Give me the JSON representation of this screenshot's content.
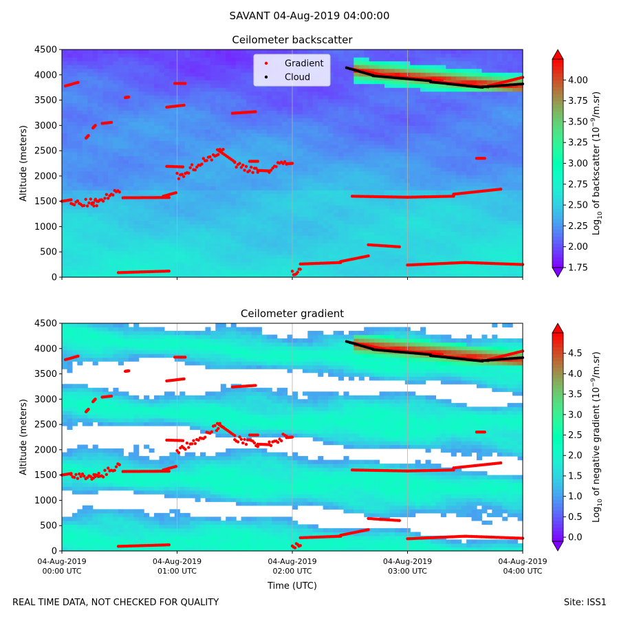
{
  "figure": {
    "suptitle": "SAVANT 04-Aug-2019 04:00:00",
    "footer_note": "REAL TIME DATA, NOT CHECKED FOR QUALITY",
    "site": "Site: ISS1"
  },
  "chart_data": [
    {
      "id": "backscatter",
      "type": "heatmap",
      "title": "Ceilometer backscatter",
      "xlabel": "",
      "ylabel": "Altitude (meters)",
      "xlim": [
        0,
        4
      ],
      "ylim": [
        0,
        4500
      ],
      "y_ticks": [
        0,
        500,
        1000,
        1500,
        2000,
        2500,
        3000,
        3500,
        4000,
        4500
      ],
      "x_ticks": [
        0,
        1,
        2,
        3,
        4
      ],
      "x_tick_labels": [],
      "grid": "vertical lines at each hour",
      "legend": {
        "placement": "top-center",
        "entries": [
          {
            "label": "Gradient",
            "color": "#ff0000",
            "marker": "dot"
          },
          {
            "label": "Cloud",
            "color": "#000000",
            "marker": "dot"
          }
        ]
      },
      "colorbar": {
        "label": "Log10 of backscatter (10^-9/m.sr)",
        "label_parts": [
          "Log",
          "10",
          " of backscatter (10",
          "−9",
          "/m.sr)"
        ],
        "min": 1.75,
        "max": 4.25,
        "ticks": [
          "1.75",
          "2.00",
          "2.25",
          "2.50",
          "2.75",
          "3.00",
          "3.25",
          "3.50",
          "3.75",
          "4.00"
        ]
      },
      "colormap": "rainbow"
    },
    {
      "id": "gradient",
      "type": "heatmap",
      "title": "Ceilometer gradient",
      "xlabel": "Time (UTC)",
      "ylabel": "Altitude (meters)",
      "xlim": [
        0,
        4
      ],
      "ylim": [
        0,
        4500
      ],
      "y_ticks": [
        0,
        500,
        1000,
        1500,
        2000,
        2500,
        3000,
        3500,
        4000,
        4500
      ],
      "x_ticks": [
        0,
        1,
        2,
        3,
        4
      ],
      "x_tick_labels": [
        [
          "04-Aug-2019",
          "00:00 UTC"
        ],
        [
          "04-Aug-2019",
          "01:00 UTC"
        ],
        [
          "04-Aug-2019",
          "02:00 UTC"
        ],
        [
          "04-Aug-2019",
          "03:00 UTC"
        ],
        [
          "04-Aug-2019",
          "04:00 UTC"
        ]
      ],
      "grid": "vertical lines at each hour",
      "colorbar": {
        "label": "Log10 of negative gradient (10^-9/m.sr)",
        "label_parts": [
          "Log",
          "10",
          " of negative gradient (10",
          "−9",
          "/m.sr)"
        ],
        "min": -0.1,
        "max": 5.0,
        "ticks": [
          "0.0",
          "0.5",
          "1.0",
          "1.5",
          "2.0",
          "2.5",
          "3.0",
          "3.5",
          "4.0",
          "4.5"
        ]
      },
      "colormap": "rainbow"
    }
  ],
  "overlays": {
    "gradient_points": [
      {
        "x0": 0.0,
        "x1": 0.08,
        "y0": 1500,
        "y1": 1530
      },
      {
        "x0": 0.03,
        "x1": 0.14,
        "y0": 3780,
        "y1": 3850
      },
      {
        "x0": 0.08,
        "x1": 0.32,
        "y0": 1450,
        "y1": 1480,
        "noisy": true
      },
      {
        "x0": 0.26,
        "x1": 0.5,
        "y0": 1420,
        "y1": 1700,
        "noisy": true
      },
      {
        "x0": 0.21,
        "x1": 0.23,
        "y0": 2750,
        "y1": 2800
      },
      {
        "x0": 0.27,
        "x1": 0.29,
        "y0": 2950,
        "y1": 3000
      },
      {
        "x0": 0.35,
        "x1": 0.43,
        "y0": 3040,
        "y1": 3060
      },
      {
        "x0": 0.55,
        "x1": 0.58,
        "y0": 3550,
        "y1": 3560
      },
      {
        "x0": 0.53,
        "x1": 0.93,
        "y0": 1570,
        "y1": 1575
      },
      {
        "x0": 0.88,
        "x1": 0.99,
        "y0": 1600,
        "y1": 1670
      },
      {
        "x0": 0.49,
        "x1": 0.93,
        "y0": 90,
        "y1": 120
      },
      {
        "x0": 0.91,
        "x1": 1.05,
        "y0": 2190,
        "y1": 2180
      },
      {
        "x0": 0.91,
        "x1": 1.06,
        "y0": 3360,
        "y1": 3400
      },
      {
        "x0": 0.98,
        "x1": 1.07,
        "y0": 3830,
        "y1": 3830
      },
      {
        "x0": 1.0,
        "x1": 1.4,
        "y0": 1980,
        "y1": 2520,
        "noisy": true
      },
      {
        "x0": 1.35,
        "x1": 1.5,
        "y0": 2520,
        "y1": 2280
      },
      {
        "x0": 1.5,
        "x1": 1.7,
        "y0": 2220,
        "y1": 2110,
        "noisy": true
      },
      {
        "x0": 1.7,
        "x1": 1.8,
        "y0": 2110,
        "y1": 2100
      },
      {
        "x0": 1.8,
        "x1": 1.95,
        "y0": 2130,
        "y1": 2260,
        "noisy": true
      },
      {
        "x0": 1.95,
        "x1": 2.0,
        "y0": 2240,
        "y1": 2250
      },
      {
        "x0": 1.48,
        "x1": 1.68,
        "y0": 3240,
        "y1": 3270
      },
      {
        "x0": 1.63,
        "x1": 1.7,
        "y0": 2290,
        "y1": 2290
      },
      {
        "x0": 2.0,
        "x1": 2.07,
        "y0": 100,
        "y1": 140,
        "noisy": true
      },
      {
        "x0": 2.07,
        "x1": 2.42,
        "y0": 260,
        "y1": 290
      },
      {
        "x0": 2.42,
        "x1": 2.66,
        "y0": 310,
        "y1": 420
      },
      {
        "x0": 2.66,
        "x1": 2.93,
        "y0": 640,
        "y1": 600
      },
      {
        "x0": 2.52,
        "x1": 3.0,
        "y0": 1600,
        "y1": 1580
      },
      {
        "x0": 3.0,
        "x1": 3.4,
        "y0": 1580,
        "y1": 1600
      },
      {
        "x0": 3.4,
        "x1": 3.81,
        "y0": 1640,
        "y1": 1740
      },
      {
        "x0": 3.0,
        "x1": 3.5,
        "y0": 240,
        "y1": 290
      },
      {
        "x0": 3.5,
        "x1": 4.0,
        "y0": 290,
        "y1": 250
      },
      {
        "x0": 2.5,
        "x1": 2.8,
        "y0": 4120,
        "y1": 3990
      },
      {
        "x0": 2.8,
        "x1": 3.3,
        "y0": 3980,
        "y1": 3880
      },
      {
        "x0": 3.3,
        "x1": 3.7,
        "y0": 3850,
        "y1": 3760
      },
      {
        "x0": 3.7,
        "x1": 4.0,
        "y0": 3780,
        "y1": 3950
      },
      {
        "x0": 3.6,
        "x1": 3.67,
        "y0": 2350,
        "y1": 2350
      }
    ],
    "cloud_points": [
      {
        "x0": 2.47,
        "x1": 2.7,
        "y0": 4140,
        "y1": 3990
      },
      {
        "x0": 2.7,
        "x1": 3.2,
        "y0": 3980,
        "y1": 3880
      },
      {
        "x0": 3.2,
        "x1": 3.65,
        "y0": 3860,
        "y1": 3750
      },
      {
        "x0": 3.65,
        "x1": 4.0,
        "y0": 3760,
        "y1": 3820
      }
    ]
  }
}
